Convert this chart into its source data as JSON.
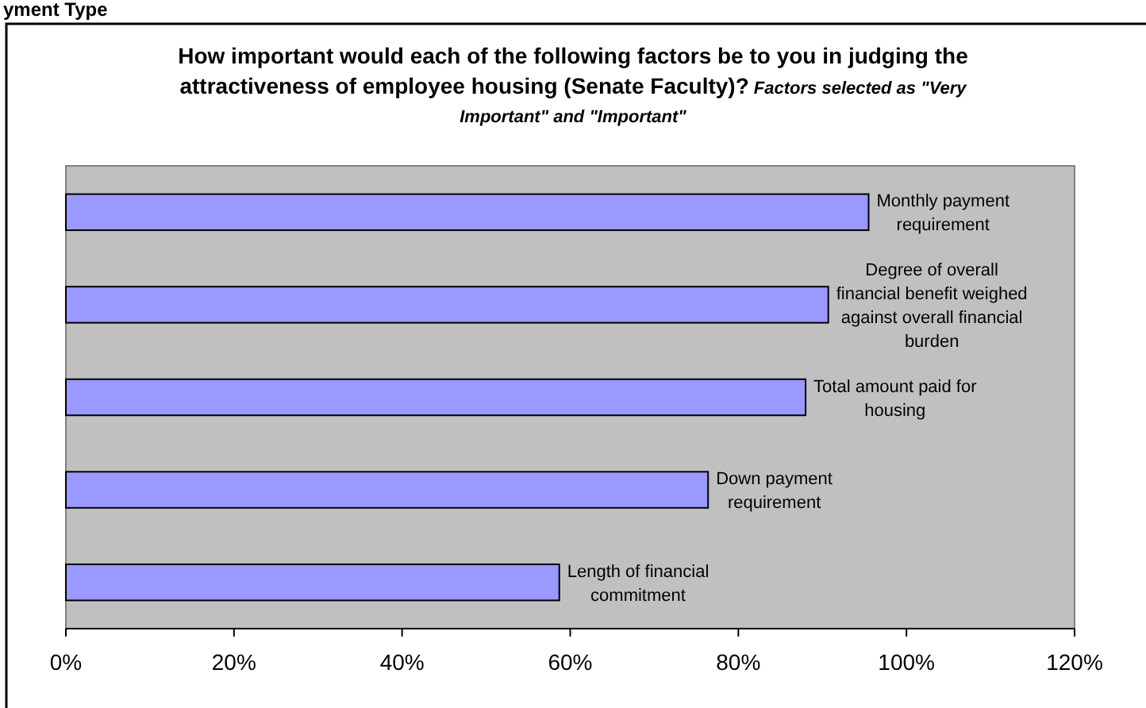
{
  "chart_data": {
    "type": "bar",
    "orientation": "horizontal",
    "title": "How important would each of the following factors be to you in judging the attractiveness of employee housing (Senate Faculty)?",
    "subtitle": "Factors selected as \"Very Important\" and \"Important\"",
    "categories": [
      "Monthly payment requirement",
      "Degree of overall financial benefit weighed against overall financial burden",
      "Total amount paid for housing",
      "Down payment requirement",
      "Length of financial commitment"
    ],
    "values": [
      95.5,
      90.7,
      88.0,
      76.4,
      58.7
    ],
    "color": "#9999ff",
    "xlim": [
      0,
      120
    ],
    "xticks": [
      {
        "value": 0,
        "label": "0%"
      },
      {
        "value": 20,
        "label": "20%"
      },
      {
        "value": 40,
        "label": "40%"
      },
      {
        "value": 60,
        "label": "60%"
      },
      {
        "value": 80,
        "label": "80%"
      },
      {
        "value": 100,
        "label": "100%"
      },
      {
        "value": 120,
        "label": "120%"
      }
    ],
    "grid": false,
    "annotations": [
      "yment Type"
    ]
  }
}
